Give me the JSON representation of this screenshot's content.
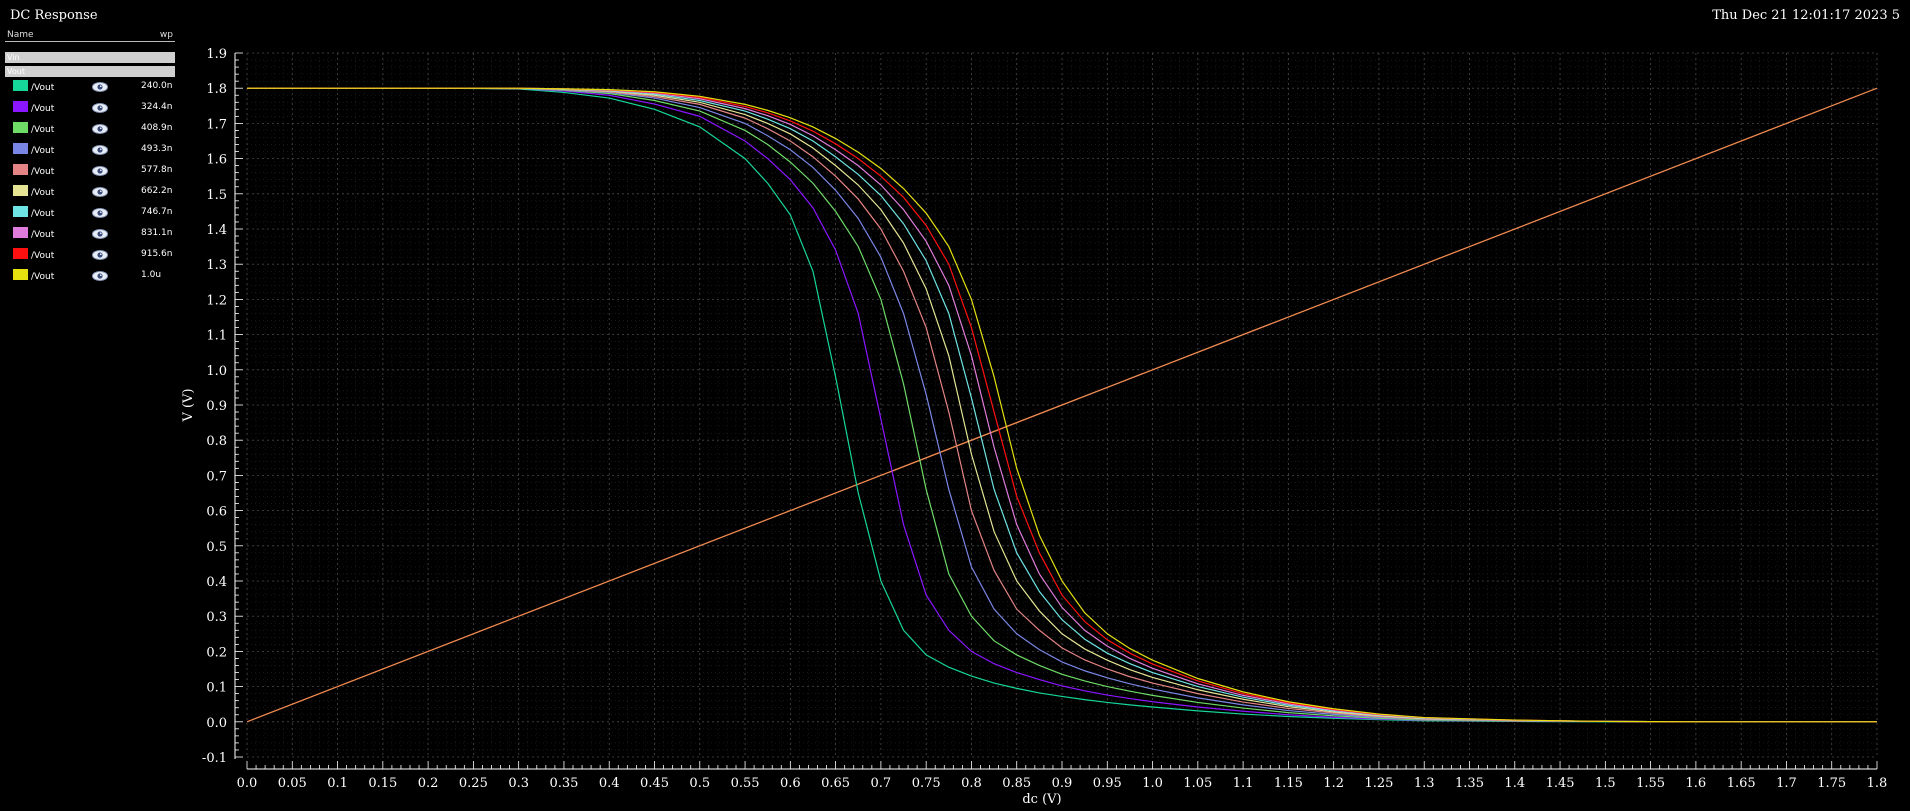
{
  "window": {
    "title": "DC Response",
    "datetime": "Thu Dec 21 12:01:17 2023   5"
  },
  "legend": {
    "header_name": "Name",
    "header_param": "wp",
    "groups": [
      "Vin",
      "Vout"
    ],
    "items": [
      {
        "name": "/Vout",
        "value": "240.0n",
        "color": "#16d69a"
      },
      {
        "name": "/Vout",
        "value": "324.4n",
        "color": "#8a16ff"
      },
      {
        "name": "/Vout",
        "value": "408.9n",
        "color": "#6fdc68"
      },
      {
        "name": "/Vout",
        "value": "493.3n",
        "color": "#7a86e6"
      },
      {
        "name": "/Vout",
        "value": "577.8n",
        "color": "#e48484"
      },
      {
        "name": "/Vout",
        "value": "662.2n",
        "color": "#e4e494"
      },
      {
        "name": "/Vout",
        "value": "746.7n",
        "color": "#6ee4e4"
      },
      {
        "name": "/Vout",
        "value": "831.1n",
        "color": "#e07cdc"
      },
      {
        "name": "/Vout",
        "value": "915.6n",
        "color": "#ff1010"
      },
      {
        "name": "/Vout",
        "value": "1.0u",
        "color": "#e4e010"
      }
    ]
  },
  "chart_data": {
    "type": "line",
    "xlabel": "dc (V)",
    "ylabel": "V (V)",
    "xlim": [
      0.0,
      1.8
    ],
    "ylim": [
      -0.1,
      1.9
    ],
    "x_ticks": [
      0.0,
      0.05,
      0.1,
      0.15,
      0.2,
      0.25,
      0.3,
      0.35,
      0.4,
      0.45,
      0.5,
      0.55,
      0.6,
      0.65,
      0.7,
      0.75,
      0.8,
      0.85,
      0.9,
      0.95,
      1.0,
      1.05,
      1.1,
      1.15,
      1.2,
      1.25,
      1.3,
      1.35,
      1.4,
      1.45,
      1.5,
      1.55,
      1.6,
      1.65,
      1.7,
      1.75,
      1.8
    ],
    "x_tick_labels": [
      "0.0",
      "0.05",
      "0.1",
      "0.15",
      "0.2",
      "0.25",
      "0.3",
      "0.35",
      "0.4",
      "0.45",
      "0.5",
      "0.55",
      "0.6",
      "0.65",
      "0.7",
      "0.75",
      "0.8",
      "0.85",
      "0.9",
      "0.95",
      "1.0",
      "1.05",
      "1.1",
      "1.15",
      "1.2",
      "1.25",
      "1.3",
      "1.35",
      "1.4",
      "1.45",
      "1.5",
      "1.55",
      "1.6",
      "1.65",
      "1.7",
      "1.75",
      "1.8"
    ],
    "y_ticks": [
      -0.1,
      0.0,
      0.1,
      0.2,
      0.3,
      0.4,
      0.5,
      0.6,
      0.7,
      0.8,
      0.9,
      1.0,
      1.1,
      1.2,
      1.3,
      1.4,
      1.5,
      1.6,
      1.7,
      1.8,
      1.9
    ],
    "y_tick_labels": [
      "-0.1",
      "0.0",
      "0.1",
      "0.2",
      "0.3",
      "0.4",
      "0.5",
      "0.6",
      "0.7",
      "0.8",
      "0.9",
      "1.0",
      "1.1",
      "1.2",
      "1.3",
      "1.4",
      "1.5",
      "1.6",
      "1.7",
      "1.8",
      "1.9"
    ],
    "grid": true,
    "vin": {
      "color": "#f08a50",
      "x": [
        0.0,
        1.8
      ],
      "y": [
        0.0,
        1.8
      ]
    },
    "x": [
      0.0,
      0.1,
      0.2,
      0.3,
      0.35,
      0.4,
      0.45,
      0.5,
      0.55,
      0.575,
      0.6,
      0.625,
      0.65,
      0.675,
      0.7,
      0.725,
      0.75,
      0.775,
      0.8,
      0.825,
      0.85,
      0.875,
      0.9,
      0.925,
      0.95,
      0.975,
      1.0,
      1.05,
      1.1,
      1.15,
      1.2,
      1.25,
      1.3,
      1.4,
      1.5,
      1.6,
      1.7,
      1.8
    ],
    "series": [
      {
        "values": [
          1.8,
          1.8,
          1.8,
          1.798,
          1.788,
          1.772,
          1.74,
          1.69,
          1.6,
          1.53,
          1.44,
          1.28,
          0.98,
          0.65,
          0.4,
          0.26,
          0.19,
          0.155,
          0.13,
          0.11,
          0.095,
          0.082,
          0.072,
          0.063,
          0.055,
          0.048,
          0.042,
          0.031,
          0.022,
          0.015,
          0.01,
          0.006,
          0.003,
          0.001,
          0.0,
          0.0,
          0.0,
          0.0
        ]
      },
      {
        "values": [
          1.8,
          1.8,
          1.8,
          1.799,
          1.792,
          1.78,
          1.755,
          1.72,
          1.65,
          1.6,
          1.54,
          1.46,
          1.34,
          1.16,
          0.86,
          0.56,
          0.36,
          0.26,
          0.2,
          0.165,
          0.14,
          0.12,
          0.102,
          0.088,
          0.076,
          0.066,
          0.057,
          0.042,
          0.03,
          0.02,
          0.013,
          0.008,
          0.004,
          0.002,
          0.001,
          0.0,
          0.0,
          0.0
        ]
      },
      {
        "values": [
          1.8,
          1.8,
          1.8,
          1.799,
          1.794,
          1.785,
          1.765,
          1.735,
          1.68,
          1.64,
          1.59,
          1.53,
          1.45,
          1.35,
          1.2,
          0.96,
          0.66,
          0.42,
          0.3,
          0.23,
          0.19,
          0.16,
          0.135,
          0.116,
          0.1,
          0.087,
          0.075,
          0.055,
          0.039,
          0.026,
          0.017,
          0.01,
          0.005,
          0.002,
          0.001,
          0.0,
          0.0,
          0.0
        ]
      },
      {
        "values": [
          1.8,
          1.8,
          1.8,
          1.799,
          1.795,
          1.788,
          1.772,
          1.745,
          1.7,
          1.665,
          1.625,
          1.575,
          1.51,
          1.43,
          1.32,
          1.16,
          0.93,
          0.66,
          0.44,
          0.32,
          0.25,
          0.205,
          0.17,
          0.145,
          0.125,
          0.108,
          0.093,
          0.068,
          0.048,
          0.032,
          0.021,
          0.013,
          0.007,
          0.003,
          0.001,
          0.0,
          0.0,
          0.0
        ]
      },
      {
        "values": [
          1.8,
          1.8,
          1.8,
          1.799,
          1.796,
          1.79,
          1.776,
          1.754,
          1.715,
          1.685,
          1.65,
          1.605,
          1.55,
          1.485,
          1.4,
          1.28,
          1.12,
          0.88,
          0.6,
          0.43,
          0.32,
          0.26,
          0.21,
          0.176,
          0.15,
          0.128,
          0.11,
          0.08,
          0.056,
          0.038,
          0.025,
          0.015,
          0.008,
          0.003,
          0.001,
          0.0,
          0.0,
          0.0
        ]
      },
      {
        "values": [
          1.8,
          1.8,
          1.8,
          1.799,
          1.797,
          1.792,
          1.78,
          1.76,
          1.725,
          1.7,
          1.67,
          1.63,
          1.58,
          1.525,
          1.455,
          1.36,
          1.23,
          1.04,
          0.76,
          0.54,
          0.4,
          0.315,
          0.25,
          0.207,
          0.175,
          0.148,
          0.126,
          0.091,
          0.064,
          0.043,
          0.028,
          0.017,
          0.009,
          0.004,
          0.001,
          0.0,
          0.0,
          0.0
        ]
      },
      {
        "values": [
          1.8,
          1.8,
          1.8,
          1.799,
          1.797,
          1.793,
          1.783,
          1.765,
          1.735,
          1.712,
          1.685,
          1.65,
          1.605,
          1.555,
          1.495,
          1.415,
          1.31,
          1.16,
          0.92,
          0.66,
          0.48,
          0.37,
          0.29,
          0.235,
          0.195,
          0.165,
          0.14,
          0.1,
          0.07,
          0.047,
          0.031,
          0.019,
          0.01,
          0.004,
          0.001,
          0.0,
          0.0,
          0.0
        ]
      },
      {
        "values": [
          1.8,
          1.8,
          1.8,
          1.8,
          1.798,
          1.794,
          1.786,
          1.77,
          1.742,
          1.722,
          1.697,
          1.665,
          1.625,
          1.58,
          1.525,
          1.455,
          1.365,
          1.24,
          1.04,
          0.78,
          0.56,
          0.42,
          0.325,
          0.26,
          0.215,
          0.18,
          0.152,
          0.108,
          0.075,
          0.051,
          0.033,
          0.02,
          0.011,
          0.004,
          0.001,
          0.0,
          0.0,
          0.0
        ]
      },
      {
        "values": [
          1.8,
          1.8,
          1.8,
          1.8,
          1.798,
          1.795,
          1.788,
          1.774,
          1.748,
          1.73,
          1.707,
          1.678,
          1.642,
          1.6,
          1.55,
          1.49,
          1.41,
          1.3,
          1.12,
          0.88,
          0.64,
          0.48,
          0.36,
          0.285,
          0.233,
          0.195,
          0.164,
          0.116,
          0.08,
          0.054,
          0.035,
          0.021,
          0.012,
          0.005,
          0.001,
          0.0,
          0.0,
          0.0
        ]
      },
      {
        "values": [
          1.8,
          1.8,
          1.8,
          1.8,
          1.798,
          1.796,
          1.79,
          1.777,
          1.754,
          1.737,
          1.716,
          1.69,
          1.657,
          1.618,
          1.572,
          1.515,
          1.445,
          1.35,
          1.2,
          0.98,
          0.72,
          0.53,
          0.4,
          0.31,
          0.25,
          0.208,
          0.175,
          0.123,
          0.085,
          0.057,
          0.037,
          0.022,
          0.012,
          0.005,
          0.001,
          0.0,
          0.0,
          0.0
        ]
      }
    ]
  }
}
